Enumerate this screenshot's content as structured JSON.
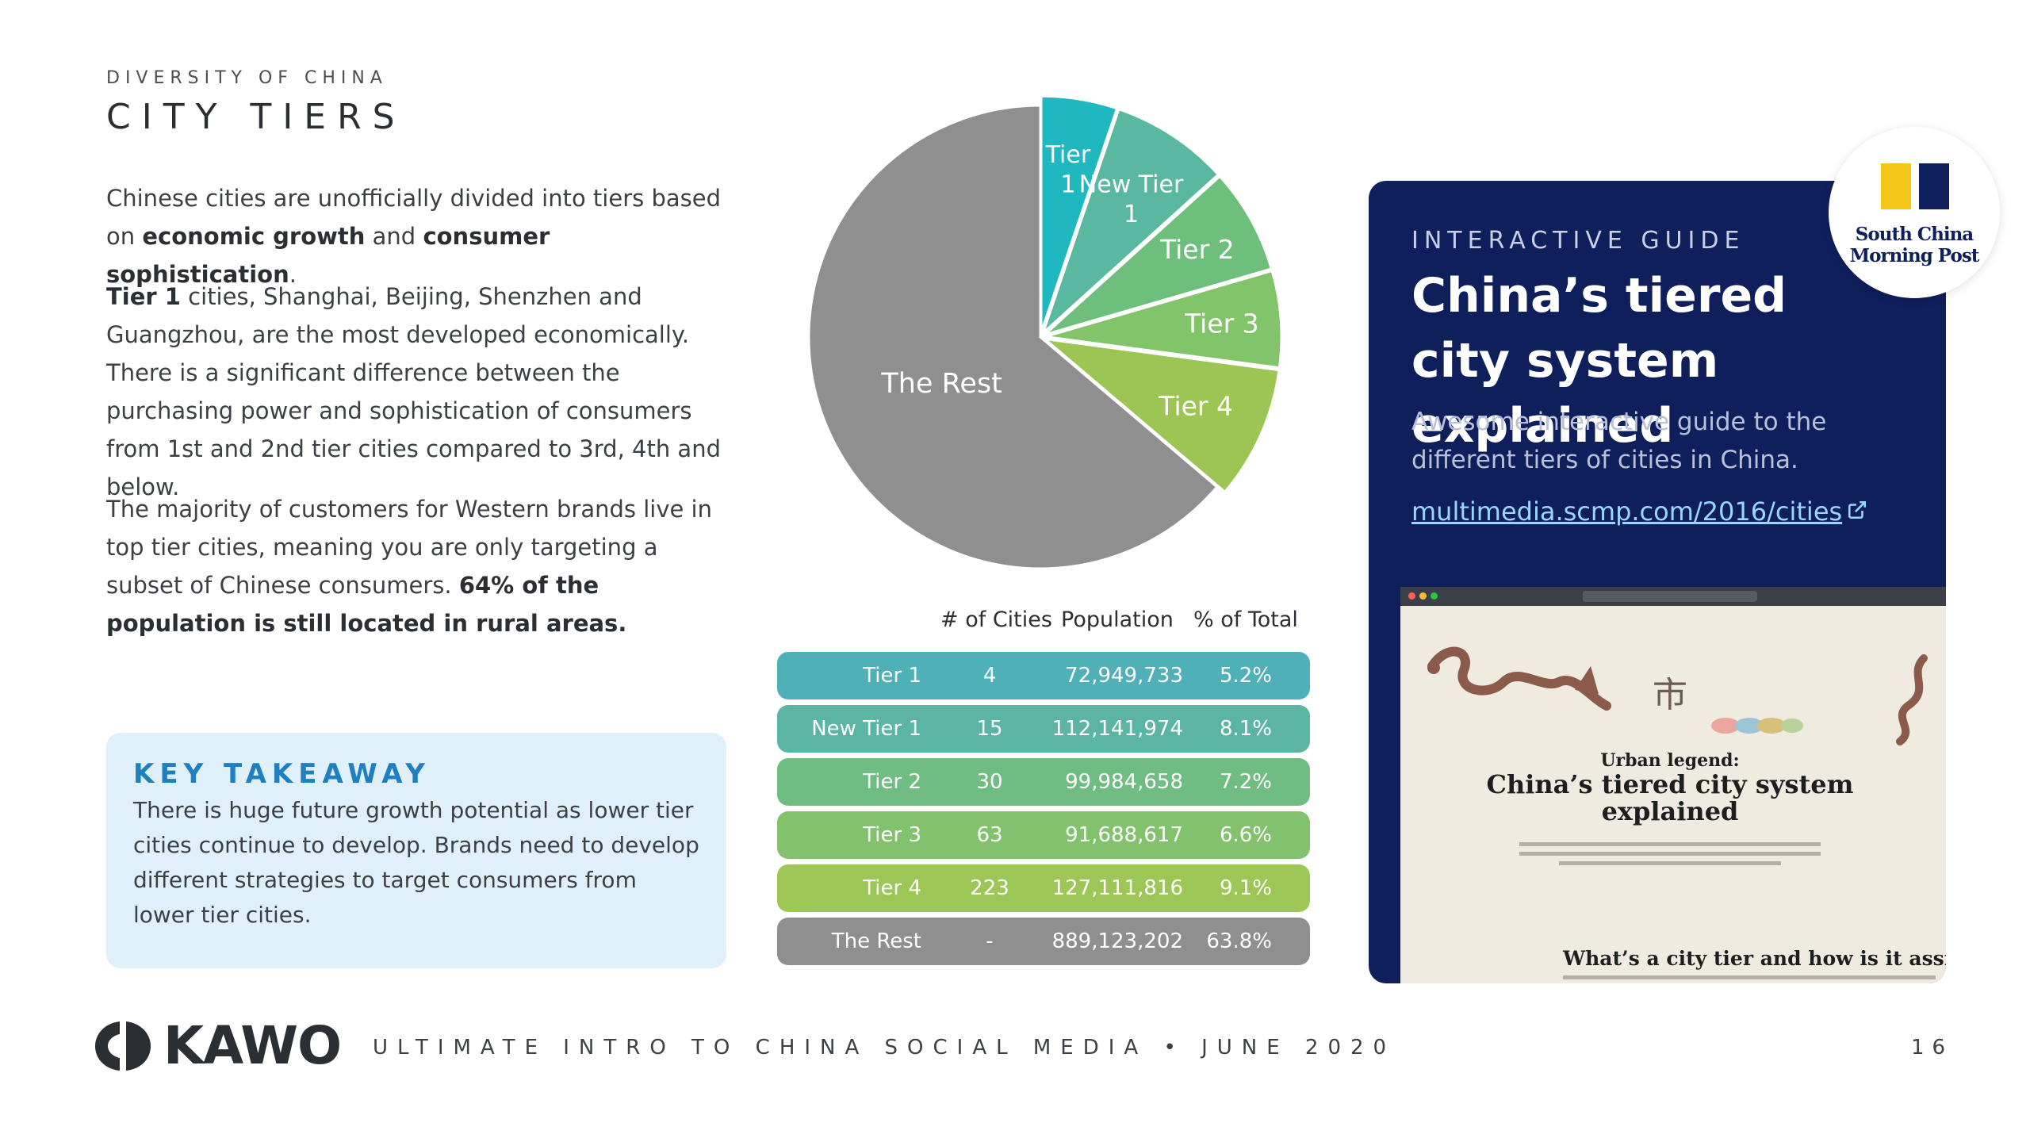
{
  "header": {
    "eyebrow": "DIVERSITY OF CHINA",
    "title": "CITY TIERS"
  },
  "body": {
    "p1_a": "Chinese cities are unofficially divided into tiers based on ",
    "p1_b": "economic growth",
    "p1_c": " and ",
    "p1_d": "consumer sophistication",
    "p1_e": ".",
    "p2_a": "Tier 1",
    "p2_b": " cities, Shanghai, Beijing, Shenzhen and Guangzhou, are the most developed economically. There is a significant difference between the purchasing power and sophistication of consumers from 1st and 2nd tier cities compared to 3rd, 4th and below.",
    "p3_a": "The majority of customers for Western brands live in top tier cities, meaning you are only targeting a subset of Chinese consumers. ",
    "p3_b": "64% of the population is still located in rural areas."
  },
  "takeaway": {
    "title": "KEY TAKEAWAY",
    "text": "There is huge future growth potential as lower tier cities continue to develop. Brands need to develop different strategies to target consumers from lower tier cities."
  },
  "chart_data": {
    "type": "pie",
    "slices": [
      {
        "label": "Tier 1",
        "value": 5.2,
        "color": "#1fb8c0"
      },
      {
        "label": "New Tier 1",
        "value": 8.1,
        "color": "#5bb8a0"
      },
      {
        "label": "Tier 2",
        "value": 7.2,
        "color": "#6fbf7c"
      },
      {
        "label": "Tier 3",
        "value": 6.6,
        "color": "#82c46a"
      },
      {
        "label": "Tier 4",
        "value": 9.1,
        "color": "#9cc554"
      },
      {
        "label": "The Rest",
        "value": 63.8,
        "color": "#8f8f8f"
      }
    ]
  },
  "table": {
    "headers": [
      "# of Cities",
      "Population",
      "% of Total"
    ],
    "rows": [
      {
        "name": "Tier 1",
        "cities": "4",
        "population": "72,949,733",
        "pct": "5.2%",
        "color": "#4fb0b8"
      },
      {
        "name": "New Tier 1",
        "cities": "15",
        "population": "112,141,974",
        "pct": "8.1%",
        "color": "#5cb5a2"
      },
      {
        "name": "Tier 2",
        "cities": "30",
        "population": "99,984,658",
        "pct": "7.2%",
        "color": "#6fbd82"
      },
      {
        "name": "Tier 3",
        "cities": "63",
        "population": "91,688,617",
        "pct": "6.6%",
        "color": "#83c26c"
      },
      {
        "name": "Tier 4",
        "cities": "223",
        "population": "127,111,816",
        "pct": "9.1%",
        "color": "#9cc655"
      },
      {
        "name": "The Rest",
        "cities": "-",
        "population": "889,123,202",
        "pct": "63.8%",
        "color": "#8f8f8f"
      }
    ]
  },
  "guide": {
    "eyebrow": "INTERACTIVE GUIDE",
    "title": "China’s tiered city system explained",
    "desc": "Awesome interactive guide to the different tiers of cities in China.",
    "link": "multimedia.scmp.com/2016/cities",
    "logo_text": "South China Morning Post",
    "logo_colors": [
      "#f5c518",
      "#0f1f5c"
    ],
    "screenshot": {
      "kicker": "Urban legend:",
      "headline": "China’s tiered city system explained",
      "subheading": "What’s a city tier and how is it assigned?",
      "glyph": "市"
    }
  },
  "footer": {
    "brand": "KAWO",
    "text": "ULTIMATE INTRO TO CHINA SOCIAL MEDIA   •   JUNE 2020",
    "page": "16"
  }
}
